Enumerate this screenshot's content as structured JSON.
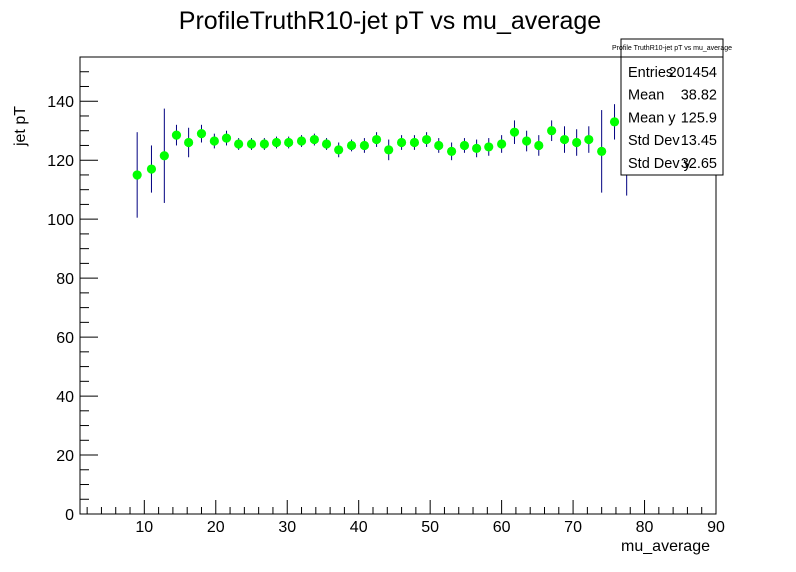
{
  "chart_data": {
    "type": "scatter",
    "title": "ProfileTruthR10-jet pT vs mu_average",
    "xlabel": "mu_average",
    "ylabel": "jet pT",
    "xlim": [
      1,
      90
    ],
    "ylim": [
      0,
      155
    ],
    "x_ticks": [
      10,
      20,
      30,
      40,
      50,
      60,
      70,
      80,
      90
    ],
    "y_ticks": [
      0,
      20,
      40,
      60,
      80,
      100,
      120,
      140
    ],
    "grid": false,
    "marker_color": "#00ff00",
    "error_color": "#000080",
    "points": [
      {
        "x": 9.0,
        "y": 115.0,
        "err": 14.5
      },
      {
        "x": 11.0,
        "y": 117.0,
        "err": 8.0
      },
      {
        "x": 12.8,
        "y": 121.5,
        "err": 16.0
      },
      {
        "x": 14.5,
        "y": 128.5,
        "err": 3.5
      },
      {
        "x": 16.2,
        "y": 126.0,
        "err": 5.0
      },
      {
        "x": 18.0,
        "y": 129.0,
        "err": 3.0
      },
      {
        "x": 19.8,
        "y": 126.5,
        "err": 2.5
      },
      {
        "x": 21.5,
        "y": 127.5,
        "err": 2.5
      },
      {
        "x": 23.2,
        "y": 125.5,
        "err": 2.0
      },
      {
        "x": 25.0,
        "y": 125.5,
        "err": 2.0
      },
      {
        "x": 26.8,
        "y": 125.5,
        "err": 2.0
      },
      {
        "x": 28.5,
        "y": 126.0,
        "err": 2.0
      },
      {
        "x": 30.2,
        "y": 126.0,
        "err": 2.0
      },
      {
        "x": 32.0,
        "y": 126.5,
        "err": 2.0
      },
      {
        "x": 33.8,
        "y": 127.0,
        "err": 2.0
      },
      {
        "x": 35.5,
        "y": 125.5,
        "err": 2.0
      },
      {
        "x": 37.2,
        "y": 123.5,
        "err": 2.5
      },
      {
        "x": 39.0,
        "y": 125.0,
        "err": 2.0
      },
      {
        "x": 40.8,
        "y": 125.0,
        "err": 2.5
      },
      {
        "x": 42.5,
        "y": 127.0,
        "err": 2.5
      },
      {
        "x": 44.2,
        "y": 123.5,
        "err": 3.5
      },
      {
        "x": 46.0,
        "y": 126.0,
        "err": 2.5
      },
      {
        "x": 47.8,
        "y": 126.0,
        "err": 2.5
      },
      {
        "x": 49.5,
        "y": 127.0,
        "err": 2.5
      },
      {
        "x": 51.2,
        "y": 125.0,
        "err": 2.5
      },
      {
        "x": 53.0,
        "y": 123.0,
        "err": 3.0
      },
      {
        "x": 54.8,
        "y": 125.0,
        "err": 2.5
      },
      {
        "x": 56.5,
        "y": 124.0,
        "err": 3.0
      },
      {
        "x": 58.2,
        "y": 124.5,
        "err": 3.0
      },
      {
        "x": 60.0,
        "y": 125.5,
        "err": 3.0
      },
      {
        "x": 61.8,
        "y": 129.5,
        "err": 4.0
      },
      {
        "x": 63.5,
        "y": 126.5,
        "err": 3.5
      },
      {
        "x": 65.2,
        "y": 125.0,
        "err": 3.5
      },
      {
        "x": 67.0,
        "y": 130.0,
        "err": 3.5
      },
      {
        "x": 68.8,
        "y": 127.0,
        "err": 4.5
      },
      {
        "x": 70.5,
        "y": 126.0,
        "err": 4.5
      },
      {
        "x": 72.2,
        "y": 127.0,
        "err": 4.5
      },
      {
        "x": 74.0,
        "y": 123.0,
        "err": 14.0
      },
      {
        "x": 75.8,
        "y": 133.0,
        "err": 6.0
      },
      {
        "x": 77.5,
        "y": 117.0,
        "err": 9.0
      }
    ]
  },
  "stats_box": {
    "title": "Profile TruthR10-jet pT vs mu_average",
    "rows": [
      {
        "label": "Entries",
        "value": "201454"
      },
      {
        "label": "Mean",
        "value": "38.82"
      },
      {
        "label": "Mean y",
        "value": "125.9"
      },
      {
        "label": "Std Dev",
        "value": "13.45"
      },
      {
        "label": "Std Dev y",
        "value": "32.65"
      }
    ]
  }
}
